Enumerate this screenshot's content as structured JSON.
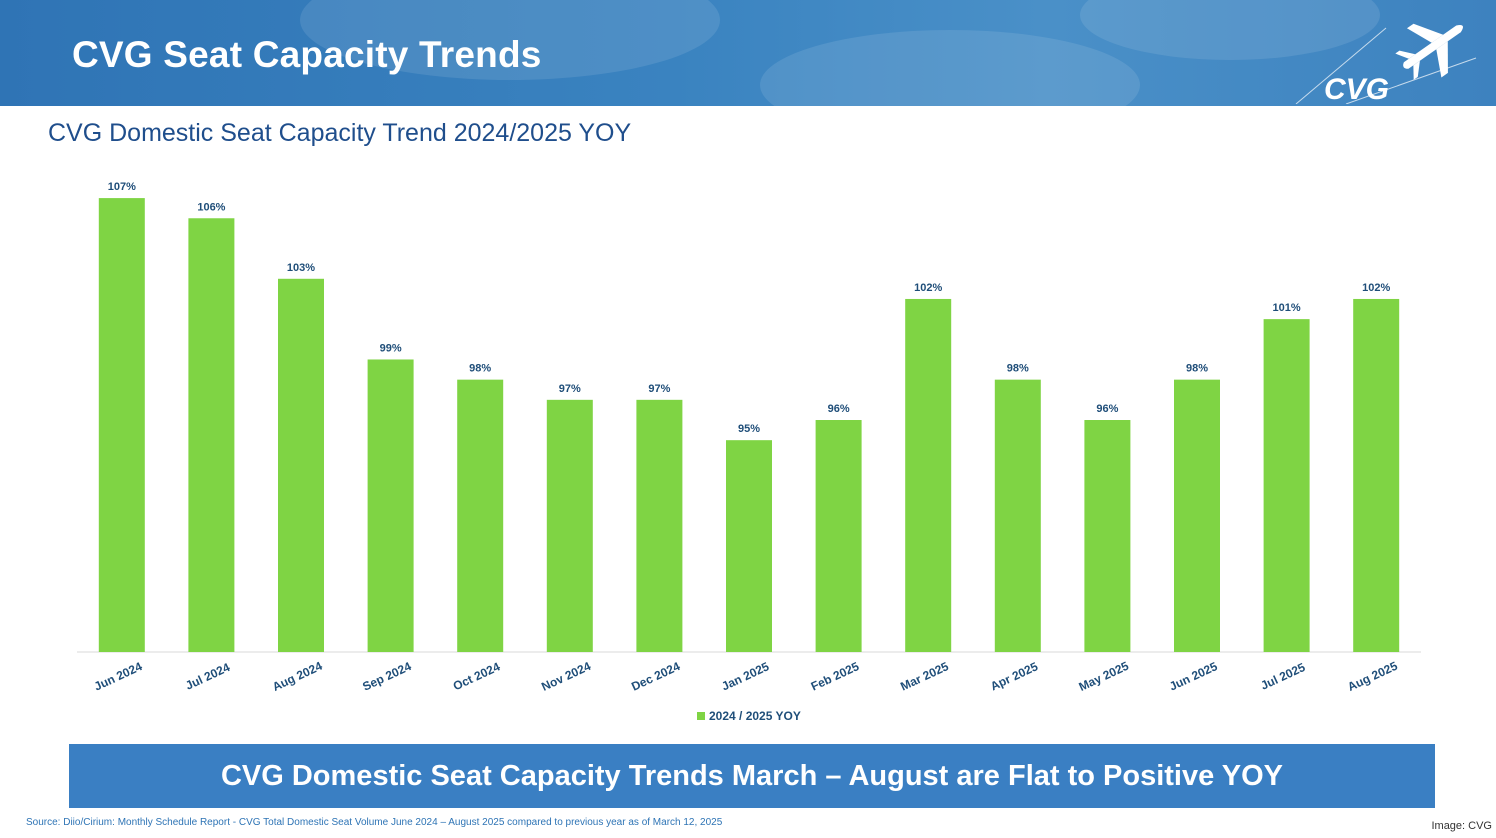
{
  "header": {
    "title": "CVG Seat Capacity Trends",
    "logo_text": "CVG"
  },
  "subtitle": "CVG Domestic Seat Capacity Trend 2024/2025 YOY",
  "chart_data": {
    "type": "bar",
    "categories": [
      "Jun 2024",
      "Jul 2024",
      "Aug 2024",
      "Sep 2024",
      "Oct 2024",
      "Nov 2024",
      "Dec 2024",
      "Jan 2025",
      "Feb 2025",
      "Mar 2025",
      "Apr 2025",
      "May 2025",
      "Jun 2025",
      "Jul 2025",
      "Aug 2025"
    ],
    "series": [
      {
        "name": "2024 / 2025 YOY",
        "values": [
          107,
          106,
          103,
          99,
          98,
          97,
          97,
          95,
          96,
          102,
          98,
          96,
          98,
          101,
          102
        ],
        "labels": [
          "107%",
          "106%",
          "103%",
          "99%",
          "98%",
          "97%",
          "97%",
          "95%",
          "96%",
          "102%",
          "98%",
          "96%",
          "98%",
          "101%",
          "102%"
        ]
      }
    ],
    "ylim": [
      84.5,
      107.5
    ],
    "grid": false,
    "legend": "bottom",
    "colors": {
      "bar": "#7fd444",
      "data_label": "#1f4e79",
      "tick_label": "#1f4e79"
    }
  },
  "banner": "CVG Domestic Seat Capacity Trends March – August are Flat to Positive YOY",
  "source": "Source: Diio/Cirium: Monthly Schedule Report  - CVG Total Domestic Seat Volume June 2024 – August 2025 compared to previous year as of March 12, 2025",
  "credit": "Image: CVG"
}
